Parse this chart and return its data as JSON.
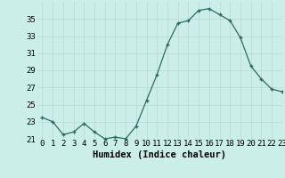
{
  "x": [
    0,
    1,
    2,
    3,
    4,
    5,
    6,
    7,
    8,
    9,
    10,
    11,
    12,
    13,
    14,
    15,
    16,
    17,
    18,
    19,
    20,
    21,
    22,
    23
  ],
  "y": [
    23.5,
    23.0,
    21.5,
    21.8,
    22.8,
    21.8,
    21.0,
    21.2,
    21.0,
    22.5,
    25.5,
    28.5,
    32.0,
    34.5,
    34.8,
    36.0,
    36.2,
    35.5,
    34.8,
    32.8,
    29.5,
    28.0,
    26.8,
    26.5
  ],
  "xlabel": "Humidex (Indice chaleur)",
  "ylim": [
    21,
    37
  ],
  "xlim": [
    -0.5,
    23
  ],
  "yticks": [
    21,
    23,
    25,
    27,
    29,
    31,
    33,
    35
  ],
  "xticks": [
    0,
    1,
    2,
    3,
    4,
    5,
    6,
    7,
    8,
    9,
    10,
    11,
    12,
    13,
    14,
    15,
    16,
    17,
    18,
    19,
    20,
    21,
    22,
    23
  ],
  "line_color": "#2e6b5e",
  "marker": "+",
  "bg_color": "#cceee8",
  "grid_color": "#b8d8d0",
  "tick_fontsize": 6.5,
  "label_fontsize": 7.5
}
